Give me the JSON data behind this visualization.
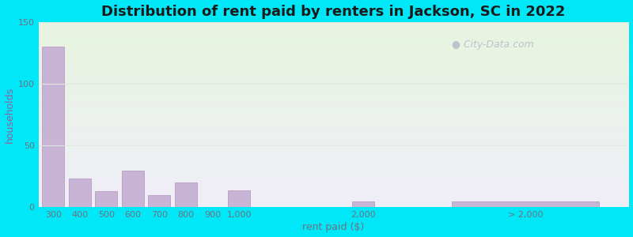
{
  "title": "Distribution of rent paid by renters in Jackson, SC in 2022",
  "xlabel": "rent paid ($)",
  "ylabel": "households",
  "bar_labels": [
    "300",
    "400",
    "500",
    "600",
    "700",
    "800",
    "900",
    "1,000",
    "2,000",
    "> 2,000"
  ],
  "bar_values": [
    130,
    23,
    13,
    30,
    10,
    20,
    0,
    14,
    5,
    5
  ],
  "bar_color": "#c8b4d4",
  "bar_edge_color": "#b090c0",
  "background_outer": "#00e8f8",
  "background_inner_top_left": "#e8f5e0",
  "background_inner_top_right": "#f8f8ff",
  "background_inner_bottom": "#f0eef8",
  "ylim": [
    0,
    150
  ],
  "yticks": [
    0,
    50,
    100,
    150
  ],
  "title_fontsize": 13,
  "axis_label_fontsize": 9,
  "tick_fontsize": 8,
  "watermark_text": "City-Data.com",
  "watermark_color": "#b8b8c8",
  "grid_color": "#e0e8e0",
  "ylabel_color": "#9060a0",
  "tick_color": "#707080",
  "note_900_value": 0,
  "gt2000_bar_height": 5,
  "gt2000_bar_full_width": true
}
